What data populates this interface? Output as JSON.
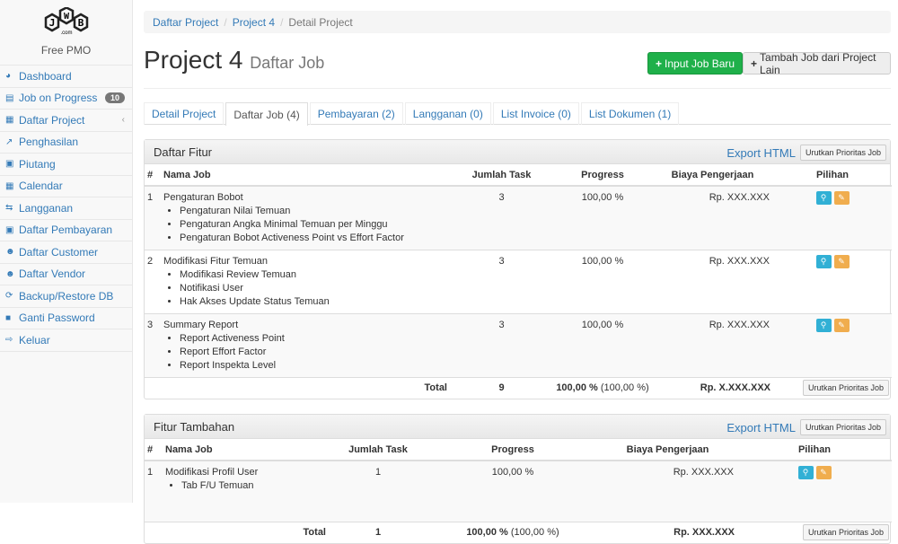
{
  "sidebar": {
    "logo_text": "JWB .com",
    "brand": "Free PMO",
    "items": [
      {
        "label": "Dashboard",
        "icon": "dashboard-icon",
        "glyph": "◕"
      },
      {
        "label": "Job on Progress",
        "icon": "tasks-icon",
        "glyph": "▤",
        "badge": "10"
      },
      {
        "label": "Daftar Project",
        "icon": "table-icon",
        "glyph": "▦",
        "chevron": "‹"
      },
      {
        "label": "Penghasilan",
        "icon": "line-chart-icon",
        "glyph": "↗"
      },
      {
        "label": "Piutang",
        "icon": "money-icon",
        "glyph": "▣"
      },
      {
        "label": "Calendar",
        "icon": "calendar-icon",
        "glyph": "▦"
      },
      {
        "label": "Langganan",
        "icon": "retweet-icon",
        "glyph": "⇆"
      },
      {
        "label": "Daftar Pembayaran",
        "icon": "money-icon",
        "glyph": "▣"
      },
      {
        "label": "Daftar Customer",
        "icon": "users-icon",
        "glyph": "☻"
      },
      {
        "label": "Daftar Vendor",
        "icon": "users-icon",
        "glyph": "☻"
      },
      {
        "label": "Backup/Restore DB",
        "icon": "refresh-icon",
        "glyph": "⟳"
      },
      {
        "label": "Ganti Password",
        "icon": "lock-icon",
        "glyph": "■"
      },
      {
        "label": "Keluar",
        "icon": "sign-out-icon",
        "glyph": "⇨"
      }
    ]
  },
  "breadcrumb": [
    "Daftar Project",
    "Project 4",
    "Detail Project"
  ],
  "header": {
    "title": "Project 4",
    "subtitle": "Daftar Job",
    "btn_input": "Input Job Baru",
    "btn_tambah": "Tambah Job dari Project Lain"
  },
  "tabs": [
    "Detail Project",
    "Daftar Job (4)",
    "Pembayaran (2)",
    "Langganan (0)",
    "List Invoice (0)",
    "List Dokumen (1)"
  ],
  "colors": {
    "success": "#1fb04a",
    "info": "#31b0d5",
    "warning": "#f0ad4e",
    "link": "#337ab7"
  },
  "panel1": {
    "title": "Daftar Fitur",
    "export": "Export HTML",
    "sort": "Urutkan Prioritas Job",
    "columns": [
      "#",
      "Nama Job",
      "Jumlah Task",
      "Progress",
      "Biaya Pengerjaan",
      "Pilihan"
    ],
    "rows": [
      {
        "no": "1",
        "name": "Pengaturan Bobot",
        "subs": [
          "Pengaturan Nilai Temuan",
          "Pengaturan Angka Minimal Temuan per Minggu",
          "Pengaturan Bobot Activeness Point vs Effort Factor"
        ],
        "tasks": "3",
        "progress": "100,00 %",
        "biaya": "Rp. XXX.XXX"
      },
      {
        "no": "2",
        "name": "Modifikasi Fitur Temuan",
        "subs": [
          "Modifikasi Review Temuan",
          "Notifikasi User",
          "Hak Akses Update Status Temuan"
        ],
        "tasks": "3",
        "progress": "100,00 %",
        "biaya": "Rp. XXX.XXX"
      },
      {
        "no": "3",
        "name": "Summary Report",
        "subs": [
          "Report Activeness Point",
          "Report Effort Factor",
          "Report Inspekta Level"
        ],
        "tasks": "3",
        "progress": "100,00 %",
        "biaya": "Rp. XXX.XXX"
      }
    ],
    "total": {
      "label": "Total",
      "tasks": "9",
      "progress": "100,00 %",
      "progress_extra": "(100,00 %)",
      "biaya": "Rp. X.XXX.XXX"
    }
  },
  "panel2": {
    "title": "Fitur Tambahan",
    "export": "Export HTML",
    "sort": "Urutkan Prioritas Job",
    "columns": [
      "#",
      "Nama Job",
      "Jumlah Task",
      "Progress",
      "Biaya Pengerjaan",
      "Pilihan"
    ],
    "rows": [
      {
        "no": "1",
        "name": "Modifikasi Profil User",
        "subs": [
          "Tab F/U Temuan"
        ],
        "tasks": "1",
        "progress": "100,00 %",
        "biaya": "Rp. XXX.XXX"
      }
    ],
    "total": {
      "label": "Total",
      "tasks": "1",
      "progress": "100,00 %",
      "progress_extra": "(100,00 %)",
      "biaya": "Rp. XXX.XXX"
    }
  }
}
